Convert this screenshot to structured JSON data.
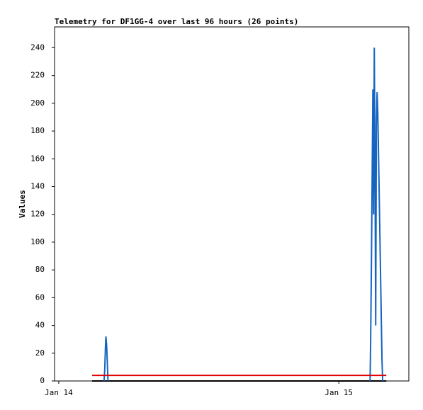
{
  "chart_data": {
    "type": "line",
    "title": "Telemetry for DF1GG-4 over last 96 hours (26 points)",
    "y_label": "Values",
    "xlim": [
      -0.36,
      30
    ],
    "ylim": [
      0,
      255
    ],
    "xticks": [
      {
        "value": 0,
        "label": "Jan 14"
      },
      {
        "value": 24,
        "label": "Jan 15"
      }
    ],
    "yticks": [
      0,
      20,
      40,
      60,
      80,
      100,
      120,
      140,
      160,
      180,
      200,
      220,
      240
    ],
    "series": [
      {
        "color": "#000000",
        "x": [
          2.86,
          28.07
        ],
        "values": [
          0,
          0
        ]
      },
      {
        "color": "#1565c0",
        "x": [
          3.88,
          3.94,
          4.0,
          4.04,
          4.1,
          4.15,
          4.22,
          null,
          26.68,
          26.73,
          26.8,
          26.86,
          26.92,
          26.98,
          27.04,
          27.1,
          27.16,
          27.22,
          27.28,
          27.34,
          27.4,
          27.46,
          27.52,
          27.58,
          27.64,
          27.7,
          27.76
        ],
        "values": [
          0,
          8,
          24,
          32,
          26,
          16,
          0,
          null,
          0,
          30,
          90,
          150,
          210,
          120,
          240,
          160,
          40,
          185,
          208,
          193,
          165,
          135,
          105,
          75,
          45,
          15,
          0
        ]
      },
      {
        "color": "#e00000",
        "x": [
          2.86,
          28.07
        ],
        "values": [
          4,
          4
        ]
      }
    ]
  }
}
